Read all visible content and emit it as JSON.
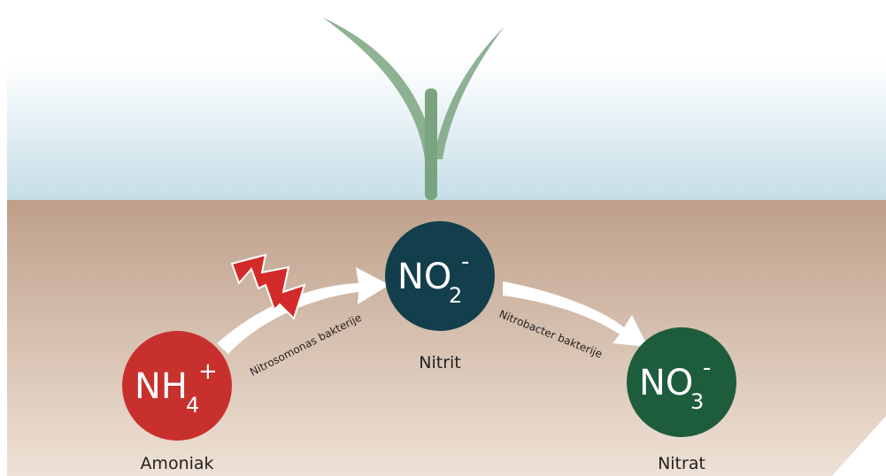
{
  "nodes": [
    {
      "formula": {
        "base": "NH",
        "sub": "4",
        "sup": "+"
      },
      "label": "Amoniak"
    },
    {
      "formula": {
        "base": "NO",
        "sub": "2",
        "sup": "-"
      },
      "label": "Nitrit"
    },
    {
      "formula": {
        "base": "NO",
        "sub": "3",
        "sup": "-"
      },
      "label": "Nitrat"
    }
  ],
  "edges": [
    {
      "label": "Nitrosomonas bakterije"
    },
    {
      "label": "Nitrobacter bakterije"
    }
  ]
}
